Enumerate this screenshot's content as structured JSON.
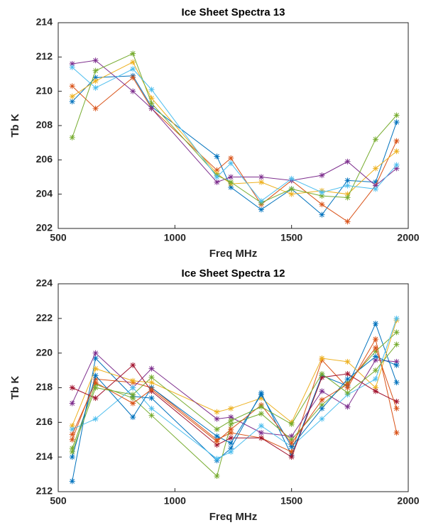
{
  "chart_data": [
    {
      "type": "line",
      "title": "Ice Sheet Spectra 13",
      "x_label": "Freq MHz",
      "y_label": "Tb K",
      "xlim": [
        500,
        2000
      ],
      "xticks": [
        500,
        1000,
        1500,
        2000
      ],
      "ylim": [
        202,
        214
      ],
      "yticks": [
        202,
        204,
        206,
        208,
        210,
        212,
        214
      ],
      "x": [
        560,
        660,
        820,
        900,
        1180,
        1240,
        1370,
        1500,
        1630,
        1740,
        1860,
        1950
      ],
      "series": [
        {
          "color": "#0072BD",
          "values": [
            209.4,
            210.8,
            210.9,
            209.1,
            206.2,
            204.4,
            203.1,
            204.3,
            202.8,
            204.8,
            204.7,
            208.2
          ]
        },
        {
          "color": "#D95319",
          "values": [
            210.3,
            209.0,
            210.8,
            209.0,
            205.4,
            206.1,
            203.4,
            204.8,
            203.4,
            202.4,
            204.5,
            207.1
          ]
        },
        {
          "color": "#EDB120",
          "values": [
            209.7,
            210.6,
            211.7,
            209.6,
            205.2,
            204.6,
            204.7,
            204.0,
            204.2,
            204.0,
            205.5,
            206.5
          ]
        },
        {
          "color": "#7E2F8E",
          "values": [
            211.6,
            211.8,
            210.0,
            209.0,
            204.7,
            205.0,
            205.0,
            204.8,
            205.1,
            205.9,
            204.5,
            205.5
          ]
        },
        {
          "color": "#77AC30",
          "values": [
            207.3,
            211.2,
            212.2,
            209.3,
            205.1,
            204.7,
            203.5,
            204.3,
            203.9,
            203.8,
            207.2,
            208.6
          ]
        },
        {
          "color": "#4DBEEE",
          "values": [
            211.4,
            210.2,
            211.3,
            210.1,
            205.0,
            205.8,
            203.6,
            204.9,
            204.1,
            204.5,
            204.3,
            205.7
          ]
        }
      ]
    },
    {
      "type": "line",
      "title": "Ice Sheet Spectra 12",
      "x_label": "Freq MHz",
      "y_label": "Tb K",
      "xlim": [
        500,
        2000
      ],
      "xticks": [
        500,
        1000,
        1500,
        2000
      ],
      "ylim": [
        212,
        224
      ],
      "yticks": [
        212,
        214,
        216,
        218,
        220,
        222,
        224
      ],
      "x": [
        560,
        660,
        820,
        900,
        1180,
        1240,
        1370,
        1500,
        1630,
        1740,
        1860,
        1950
      ],
      "series": [
        {
          "color": "#0072BD",
          "values": [
            212.6,
            219.7,
            217.5,
            217.4,
            213.8,
            214.5,
            217.7,
            214.1,
            218.7,
            218.1,
            221.7,
            218.3
          ]
        },
        {
          "color": "#D95319",
          "values": [
            215.0,
            218.5,
            218.3,
            218.0,
            215.0,
            215.4,
            215.1,
            214.3,
            219.6,
            218.0,
            220.8,
            215.4
          ]
        },
        {
          "color": "#EDB120",
          "values": [
            215.8,
            219.1,
            218.4,
            218.3,
            216.6,
            216.8,
            217.4,
            216.0,
            219.7,
            219.5,
            218.0,
            221.9
          ]
        },
        {
          "color": "#7E2F8E",
          "values": [
            217.1,
            220.0,
            218.0,
            219.1,
            216.2,
            216.3,
            215.4,
            215.2,
            217.8,
            216.9,
            219.6,
            219.5
          ]
        },
        {
          "color": "#77AC30",
          "values": [
            214.5,
            218.2,
            217.4,
            216.4,
            212.9,
            215.9,
            216.5,
            215.0,
            217.0,
            218.3,
            220.1,
            221.2
          ]
        },
        {
          "color": "#4DBEEE",
          "values": [
            215.6,
            216.2,
            218.0,
            216.8,
            213.9,
            214.3,
            215.8,
            214.6,
            216.2,
            217.6,
            218.5,
            222.0
          ]
        },
        {
          "color": "#A2142F",
          "values": [
            218.0,
            217.4,
            219.3,
            217.8,
            214.7,
            215.1,
            215.1,
            214.0,
            218.6,
            218.8,
            217.8,
            217.2
          ]
        },
        {
          "color": "#0072BD",
          "values": [
            214.0,
            218.7,
            216.3,
            218.0,
            215.2,
            214.8,
            217.6,
            214.6,
            216.8,
            218.5,
            219.8,
            219.3
          ]
        },
        {
          "color": "#D95319",
          "values": [
            215.3,
            218.3,
            217.1,
            217.9,
            214.9,
            215.6,
            217.0,
            214.8,
            217.3,
            218.2,
            220.3,
            216.8
          ]
        },
        {
          "color": "#77AC30",
          "values": [
            214.3,
            218.0,
            217.6,
            218.6,
            215.6,
            216.1,
            216.9,
            215.9,
            218.8,
            217.7,
            219.0,
            220.5
          ]
        }
      ]
    }
  ]
}
